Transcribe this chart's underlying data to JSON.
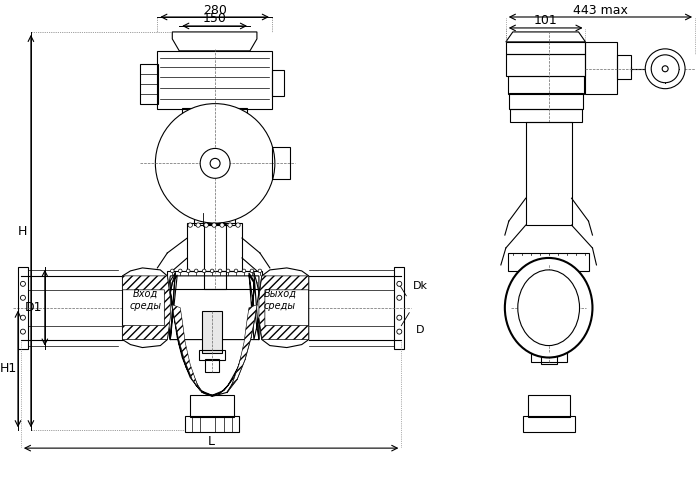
{
  "bg_color": "#ffffff",
  "line_color": "#000000",
  "linewidth": 0.8,
  "thick_lw": 1.5,
  "annotations": {
    "dim_280": "280",
    "dim_150": "150",
    "dim_443": "443 max",
    "dim_101": "101",
    "label_H": "H",
    "label_H1": "H1",
    "label_D": "D",
    "label_D1": "D1",
    "label_Dk": "Dk",
    "label_L": "L",
    "label_vhod": "Вход\nсреды",
    "label_vyhod": "Выход\nсреды"
  }
}
